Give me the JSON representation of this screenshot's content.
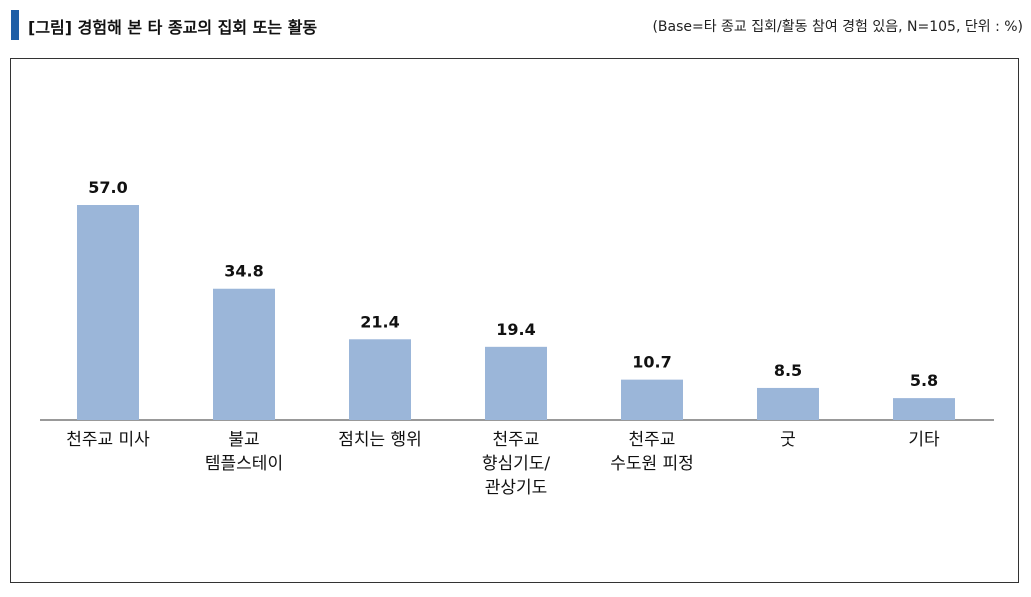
{
  "header": {
    "title": "[그림] 경험해 본 타 종교의 집회 또는 활동",
    "base_note": "(Base=타 종교 집회/활동 참여 경험 있음, N=105, 단위 : %)"
  },
  "colors": {
    "bar": "#9bb6d9",
    "accent_bar": "#1f5fa6"
  },
  "chart_data": {
    "type": "bar",
    "title": "[그림] 경험해 본 타 종교의 집회 또는 활동",
    "xlabel": "",
    "ylabel": "",
    "categories": [
      [
        "천주교 미사"
      ],
      [
        "불교",
        "템플스테이"
      ],
      [
        "점치는 행위"
      ],
      [
        "천주교",
        "향심기도/",
        "관상기도"
      ],
      [
        "천주교",
        "수도원 피정"
      ],
      [
        "굿"
      ],
      [
        "기타"
      ]
    ],
    "values": [
      57.0,
      34.8,
      21.4,
      19.4,
      10.7,
      8.5,
      5.8
    ],
    "value_labels": [
      "57.0",
      "34.8",
      "21.4",
      "19.4",
      "10.7",
      "8.5",
      "5.8"
    ],
    "ylim": [
      0,
      60
    ],
    "grid": false,
    "legend": "none"
  }
}
